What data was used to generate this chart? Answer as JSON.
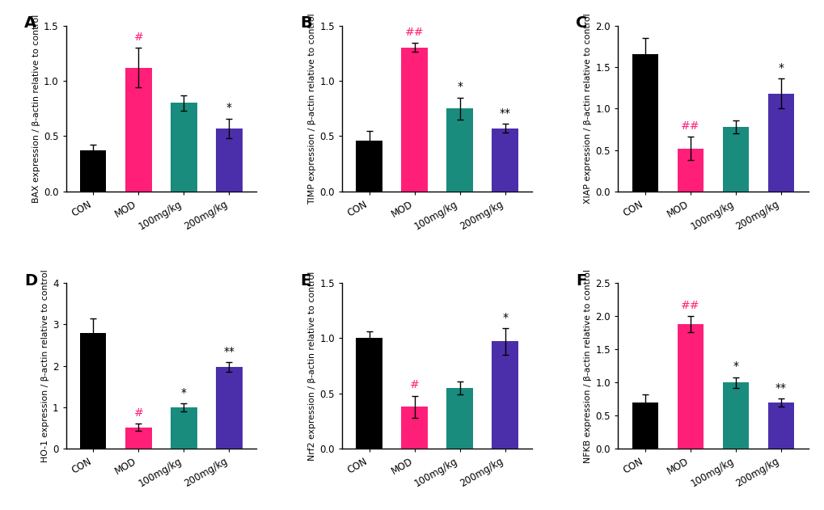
{
  "panels": [
    {
      "label": "A",
      "ylabel": "BAX expression / β-actin relative to control",
      "ylim": [
        0,
        1.5
      ],
      "yticks": [
        0.0,
        0.5,
        1.0,
        1.5
      ],
      "categories": [
        "CON",
        "MOD",
        "100mg/kg",
        "200mg/kg"
      ],
      "values": [
        0.37,
        1.12,
        0.8,
        0.57
      ],
      "errors": [
        0.05,
        0.18,
        0.07,
        0.09
      ],
      "colors": [
        "#000000",
        "#FF1F78",
        "#1A8C7D",
        "#4B2FAA"
      ],
      "annotations": [
        null,
        "#",
        null,
        "*"
      ],
      "ann_colors": [
        "#000000",
        "#FF1F78",
        "#000000",
        "#000000"
      ]
    },
    {
      "label": "B",
      "ylabel": "TIMP expression / β-actin relative to control",
      "ylim": [
        0,
        1.5
      ],
      "yticks": [
        0.0,
        0.5,
        1.0,
        1.5
      ],
      "categories": [
        "CON",
        "MOD",
        "100mg/kg",
        "200mg/kg"
      ],
      "values": [
        0.46,
        1.3,
        0.75,
        0.57
      ],
      "errors": [
        0.09,
        0.04,
        0.1,
        0.04
      ],
      "colors": [
        "#000000",
        "#FF1F78",
        "#1A8C7D",
        "#4B2FAA"
      ],
      "annotations": [
        null,
        "##",
        "*",
        "**"
      ],
      "ann_colors": [
        "#000000",
        "#FF1F78",
        "#000000",
        "#000000"
      ]
    },
    {
      "label": "C",
      "ylabel": "XIAP expression / β-actin relative to control",
      "ylim": [
        0,
        2.0
      ],
      "yticks": [
        0.0,
        0.5,
        1.0,
        1.5,
        2.0
      ],
      "categories": [
        "CON",
        "MOD",
        "100mg/kg",
        "200mg/kg"
      ],
      "values": [
        1.65,
        0.52,
        0.78,
        1.18
      ],
      "errors": [
        0.2,
        0.14,
        0.08,
        0.18
      ],
      "colors": [
        "#000000",
        "#FF1F78",
        "#1A8C7D",
        "#4B2FAA"
      ],
      "annotations": [
        null,
        "##",
        null,
        "*"
      ],
      "ann_colors": [
        "#000000",
        "#FF1F78",
        "#000000",
        "#000000"
      ]
    },
    {
      "label": "D",
      "ylabel": "HO-1 expression / β-actin relative to control",
      "ylim": [
        0,
        4
      ],
      "yticks": [
        0,
        1,
        2,
        3,
        4
      ],
      "categories": [
        "CON",
        "MOD",
        "100mg/kg",
        "200mg/kg"
      ],
      "values": [
        2.8,
        0.52,
        1.0,
        1.97
      ],
      "errors": [
        0.35,
        0.08,
        0.1,
        0.12
      ],
      "colors": [
        "#000000",
        "#FF1F78",
        "#1A8C7D",
        "#4B2FAA"
      ],
      "annotations": [
        null,
        "#",
        "*",
        "**"
      ],
      "ann_colors": [
        "#000000",
        "#FF1F78",
        "#000000",
        "#000000"
      ]
    },
    {
      "label": "E",
      "ylabel": "Nrf2 expression / β-actin relative to control",
      "ylim": [
        0,
        1.5
      ],
      "yticks": [
        0.0,
        0.5,
        1.0,
        1.5
      ],
      "categories": [
        "CON",
        "MOD",
        "100mg/kg",
        "200mg/kg"
      ],
      "values": [
        1.0,
        0.38,
        0.55,
        0.97
      ],
      "errors": [
        0.06,
        0.1,
        0.06,
        0.12
      ],
      "colors": [
        "#000000",
        "#FF1F78",
        "#1A8C7D",
        "#4B2FAA"
      ],
      "annotations": [
        null,
        "#",
        null,
        "*"
      ],
      "ann_colors": [
        "#000000",
        "#FF1F78",
        "#000000",
        "#000000"
      ]
    },
    {
      "label": "F",
      "ylabel": "NFKB expression / β-actin relative to control",
      "ylim": [
        0,
        2.5
      ],
      "yticks": [
        0.0,
        0.5,
        1.0,
        1.5,
        2.0,
        2.5
      ],
      "categories": [
        "CON",
        "MOD",
        "100mg/kg",
        "200mg/kg"
      ],
      "values": [
        0.7,
        1.88,
        1.0,
        0.7
      ],
      "errors": [
        0.12,
        0.12,
        0.08,
        0.06
      ],
      "colors": [
        "#000000",
        "#FF1F78",
        "#1A8C7D",
        "#4B2FAA"
      ],
      "annotations": [
        null,
        "##",
        "*",
        "**"
      ],
      "ann_colors": [
        "#000000",
        "#FF1F78",
        "#000000",
        "#000000"
      ]
    }
  ],
  "background_color": "#FFFFFF",
  "bar_width": 0.58,
  "tick_fontsize": 8.5,
  "ylabel_fontsize": 7.8,
  "annot_fontsize": 10,
  "panel_label_fontsize": 14,
  "capsize": 3
}
